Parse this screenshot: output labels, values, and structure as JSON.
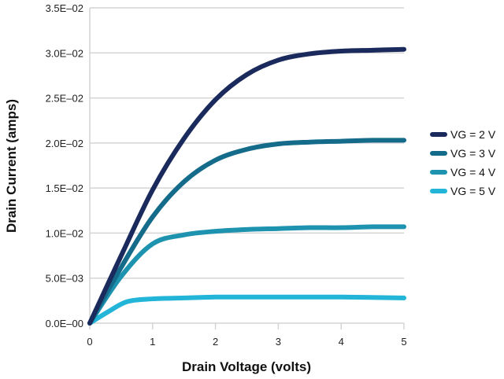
{
  "chart_data": {
    "type": "line",
    "title": "",
    "xlabel": "Drain Voltage (volts)",
    "ylabel": "Drain Current (amps)",
    "xlim": [
      0,
      5
    ],
    "ylim": [
      0,
      0.035
    ],
    "x_ticks": [
      0,
      1,
      2,
      3,
      4,
      5
    ],
    "x_tick_labels": [
      "0",
      "1",
      "2",
      "3",
      "4",
      "5"
    ],
    "y_ticks": [
      0,
      0.005,
      0.01,
      0.015,
      0.02,
      0.025,
      0.03,
      0.035
    ],
    "y_tick_labels": [
      "0.0E–00",
      "5.0E–03",
      "1.0E–02",
      "1.5E–02",
      "2.0E–02",
      "2.5E–02",
      "3.0E–02",
      "3.5E–02"
    ],
    "grid": "horizontal",
    "legend_position": "right",
    "series": [
      {
        "name": "VG = 2 V",
        "color": "#1b2a5c",
        "x": [
          0,
          0.5,
          1,
          1.5,
          2,
          2.5,
          3,
          3.5,
          4,
          4.5,
          5
        ],
        "y": [
          0,
          0.0075,
          0.0148,
          0.0205,
          0.0248,
          0.0276,
          0.0292,
          0.0299,
          0.0302,
          0.0303,
          0.0304
        ]
      },
      {
        "name": "VG = 3 V",
        "color": "#146b8a",
        "x": [
          0,
          0.5,
          1,
          1.5,
          2,
          2.5,
          3,
          3.5,
          4,
          4.5,
          5
        ],
        "y": [
          0,
          0.0062,
          0.0118,
          0.0157,
          0.0181,
          0.0193,
          0.0199,
          0.0201,
          0.0202,
          0.0203,
          0.0203
        ]
      },
      {
        "name": "VG = 4 V",
        "color": "#1d93b0",
        "x": [
          0,
          0.5,
          1,
          1.5,
          2,
          2.5,
          3,
          3.5,
          4,
          4.5,
          5
        ],
        "y": [
          0,
          0.0052,
          0.0088,
          0.0098,
          0.0102,
          0.0104,
          0.0105,
          0.0106,
          0.0106,
          0.0107,
          0.0107
        ]
      },
      {
        "name": "VG = 5 V",
        "color": "#22b5d8",
        "x": [
          0,
          0.3,
          0.6,
          1,
          1.5,
          2,
          2.5,
          3,
          4,
          5
        ],
        "y": [
          0,
          0.0013,
          0.0024,
          0.0027,
          0.0028,
          0.0029,
          0.0029,
          0.0029,
          0.0029,
          0.0028
        ]
      }
    ]
  }
}
